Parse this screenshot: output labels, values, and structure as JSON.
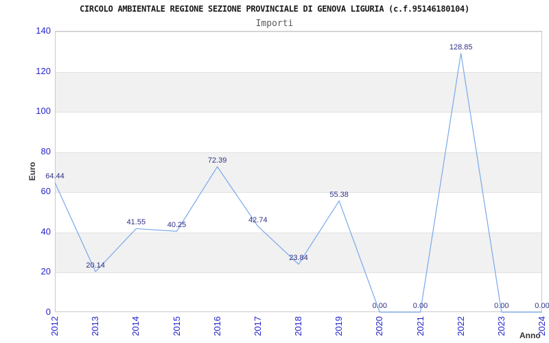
{
  "chart_data": {
    "type": "line",
    "title": "CIRCOLO AMBIENTALE REGIONE SEZIONE PROVINCIALE DI GENOVA LIGURIA (c.f.95146180104)",
    "subtitle": "Importi",
    "xlabel": "Anno",
    "ylabel": "Euro",
    "categories": [
      "2012",
      "2013",
      "2014",
      "2015",
      "2016",
      "2017",
      "2018",
      "2019",
      "2020",
      "2021",
      "2022",
      "2023",
      "2024"
    ],
    "values": [
      64.44,
      20.14,
      41.55,
      40.25,
      72.39,
      42.74,
      23.84,
      55.38,
      0.0,
      0.0,
      128.85,
      0.0,
      0.0
    ],
    "point_labels": [
      "64.44",
      "20.14",
      "41.55",
      "40.25",
      "72.39",
      "42.74",
      "23.84",
      "55.38",
      "0.00",
      "0.00",
      "128.85",
      "0.00",
      "0.00"
    ],
    "ylim": [
      0,
      140
    ],
    "y_ticks": [
      0,
      20,
      40,
      60,
      80,
      100,
      120,
      140
    ],
    "grid": "horizontal gridlines with alternating gray bands every 20 units",
    "legend": "none",
    "colors": {
      "line": "#78a8ea",
      "tick_label": "#2222cc",
      "point_label": "#2f2f86",
      "band": "#f1f1f1",
      "grid_line": "#e1e1e1",
      "plot_border": "#c9c9c9",
      "title": "#1a1a1a",
      "subtitle": "#595959",
      "axis_label": "#333333"
    }
  }
}
